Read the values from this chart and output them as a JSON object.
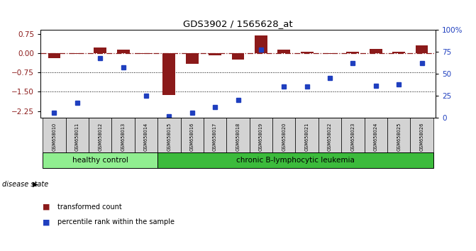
{
  "title": "GDS3902 / 1565628_at",
  "samples": [
    "GSM658010",
    "GSM658011",
    "GSM658012",
    "GSM658013",
    "GSM658014",
    "GSM658015",
    "GSM658016",
    "GSM658017",
    "GSM658018",
    "GSM658019",
    "GSM658020",
    "GSM658021",
    "GSM658022",
    "GSM658023",
    "GSM658024",
    "GSM658025",
    "GSM658026"
  ],
  "red_bars": [
    -0.18,
    -0.02,
    0.22,
    0.13,
    -0.02,
    -1.63,
    -0.42,
    -0.08,
    -0.25,
    0.68,
    0.13,
    0.05,
    -0.03,
    0.07,
    0.18,
    0.07,
    0.3
  ],
  "blue_dots_pct": [
    5,
    17,
    68,
    57,
    25,
    1,
    5,
    12,
    20,
    78,
    35,
    35,
    45,
    62,
    36,
    38,
    62
  ],
  "ylim_left": [
    -2.5,
    0.9
  ],
  "ylim_right": [
    0,
    100
  ],
  "yticks_left": [
    0.75,
    0.0,
    -0.75,
    -1.5,
    -2.25
  ],
  "yticks_right": [
    100,
    75,
    50,
    25,
    0
  ],
  "ytick_right_labels": [
    "100%",
    "75",
    "50",
    "25",
    "0"
  ],
  "dotted_lines": [
    -0.75,
    -1.5
  ],
  "healthy_count": 5,
  "group1_label": "healthy control",
  "group2_label": "chronic B-lymphocytic leukemia",
  "disease_state_label": "disease state",
  "legend_red": "transformed count",
  "legend_blue": "percentile rank within the sample",
  "bar_color": "#8B1A1A",
  "dot_color": "#1F3FBF",
  "hline_color": "#8B1A1A",
  "group1_color": "#90EE90",
  "group2_color": "#3CBB3C",
  "sample_box_color": "#D3D3D3",
  "bg_color": "#FFFFFF",
  "bar_width": 0.55
}
